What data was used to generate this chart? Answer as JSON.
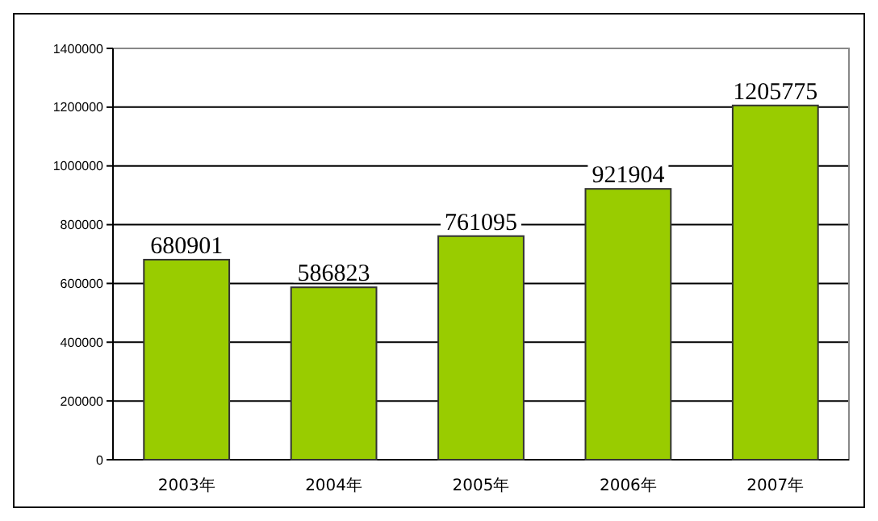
{
  "chart_data": {
    "type": "bar",
    "categories": [
      "2003年",
      "2004年",
      "2005年",
      "2006年",
      "2007年"
    ],
    "values": [
      680901,
      586823,
      761095,
      921904,
      1205775
    ],
    "color": "#99cc00",
    "ylim": [
      0,
      1400000
    ],
    "yticks": [
      0,
      200000,
      400000,
      600000,
      800000,
      1000000,
      1200000,
      1400000
    ],
    "grid": "y",
    "data_labels": true
  }
}
